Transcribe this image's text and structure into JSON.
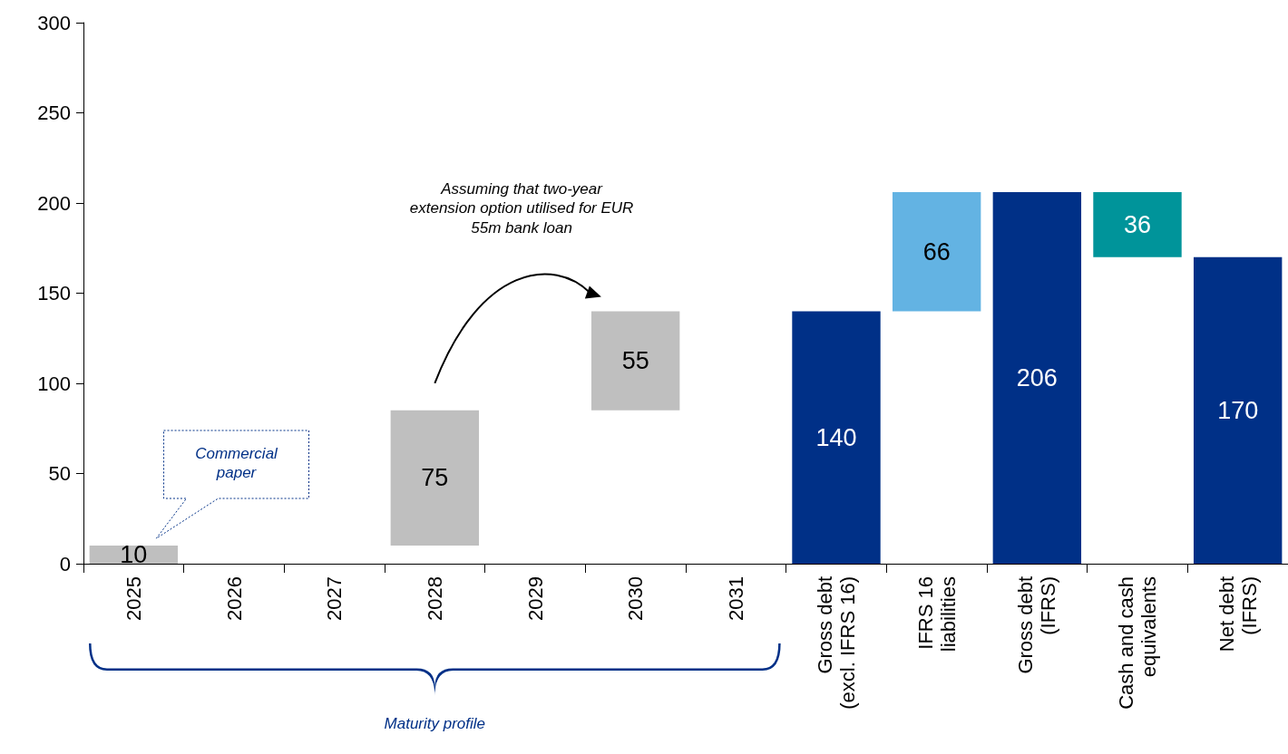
{
  "chart_data": {
    "type": "bar",
    "categories": [
      "2025",
      "2026",
      "2027",
      "2028",
      "2029",
      "2030",
      "2031",
      "Gross debt\n(excl. IFRS 16)",
      "IFRS 16\nliabilities",
      "Gross debt\n(IFRS)",
      "Cash and cash\nequivalents",
      "Net debt\n(IFRS)"
    ],
    "series": [
      {
        "values": [
          10,
          null,
          null,
          75,
          null,
          55,
          null,
          140,
          66,
          206,
          36,
          170
        ],
        "colors": [
          "#bfbfbf",
          null,
          null,
          "#bfbfbf",
          null,
          "#bfbfbf",
          null,
          "#003087",
          "#63b3e3",
          "#003087",
          "#00949a",
          "#003087"
        ],
        "base": [
          0,
          null,
          null,
          10,
          null,
          85,
          null,
          0,
          140,
          0,
          170,
          0
        ]
      }
    ],
    "ylim": [
      0,
      300
    ],
    "yticks": [
      0,
      50,
      100,
      150,
      200,
      250,
      300
    ],
    "data_labels": true,
    "grid": false,
    "annotations": [
      "Assuming that two-year extension option utilised for EUR 55m bank loan",
      "Commercial paper",
      "Maturity profile"
    ]
  }
}
